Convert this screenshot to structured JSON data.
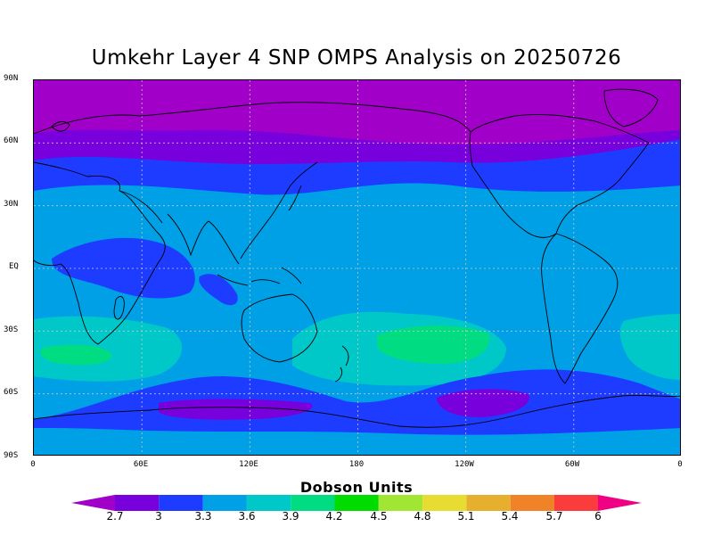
{
  "title": "Umkehr Layer 4 SNP OMPS Analysis on 20250726",
  "map": {
    "lat_labels": [
      "90N",
      "60N",
      "30N",
      "EQ",
      "30S",
      "60S",
      "90S"
    ],
    "lon_labels": [
      "0",
      "60E",
      "120E",
      "180",
      "120W",
      "60W",
      "0"
    ],
    "grid_lines": true,
    "projection": "cylindrical equidistant"
  },
  "colorbar": {
    "label": "Dobson Units",
    "ticks": [
      "2.7",
      "3",
      "3.3",
      "3.6",
      "3.9",
      "4.2",
      "4.5",
      "4.8",
      "5.1",
      "5.4",
      "5.7",
      "6"
    ],
    "colors": {
      "below_2_7": "#a000c8",
      "c2_7_3": "#7800dc",
      "c3_3_3": "#1e3cff",
      "c3_3_3_6": "#00a0e6",
      "c3_6_3_9": "#00c8c8",
      "c3_9_4_2": "#00dc82",
      "c4_2_4_5": "#00dc00",
      "c4_5_4_8": "#a0e632",
      "c4_8_5_1": "#e6dc32",
      "c5_1_5_4": "#e6af2d",
      "c5_4_5_7": "#f08228",
      "c5_7_6": "#fa3c3c",
      "above_6": "#f00082"
    }
  }
}
